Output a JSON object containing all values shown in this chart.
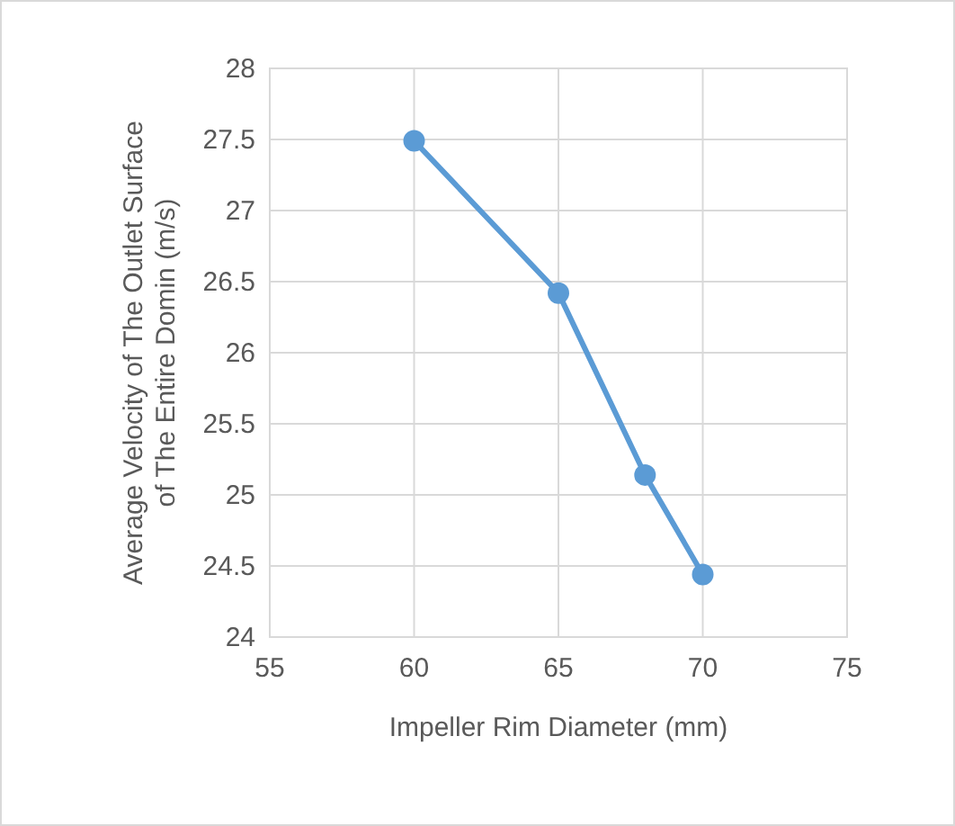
{
  "chart_data": {
    "type": "line",
    "xlabel": "Impeller Rim Diameter (mm)",
    "ylabel": "Average Velocity of The Outlet Surface\nof The Entire Domin (m/s)",
    "x": [
      60,
      65,
      68,
      70
    ],
    "series": [
      {
        "color": "#5b9bd5",
        "values": [
          27.49,
          26.42,
          25.14,
          24.44
        ]
      }
    ],
    "xlim": [
      55,
      75
    ],
    "xticks": [
      55,
      60,
      65,
      70,
      75
    ],
    "ylim": [
      24,
      28
    ],
    "yticks": [
      24,
      24.5,
      25,
      25.5,
      26,
      26.5,
      27,
      27.5,
      28
    ],
    "grid": true,
    "marker": "circle",
    "line_style": "solid"
  }
}
